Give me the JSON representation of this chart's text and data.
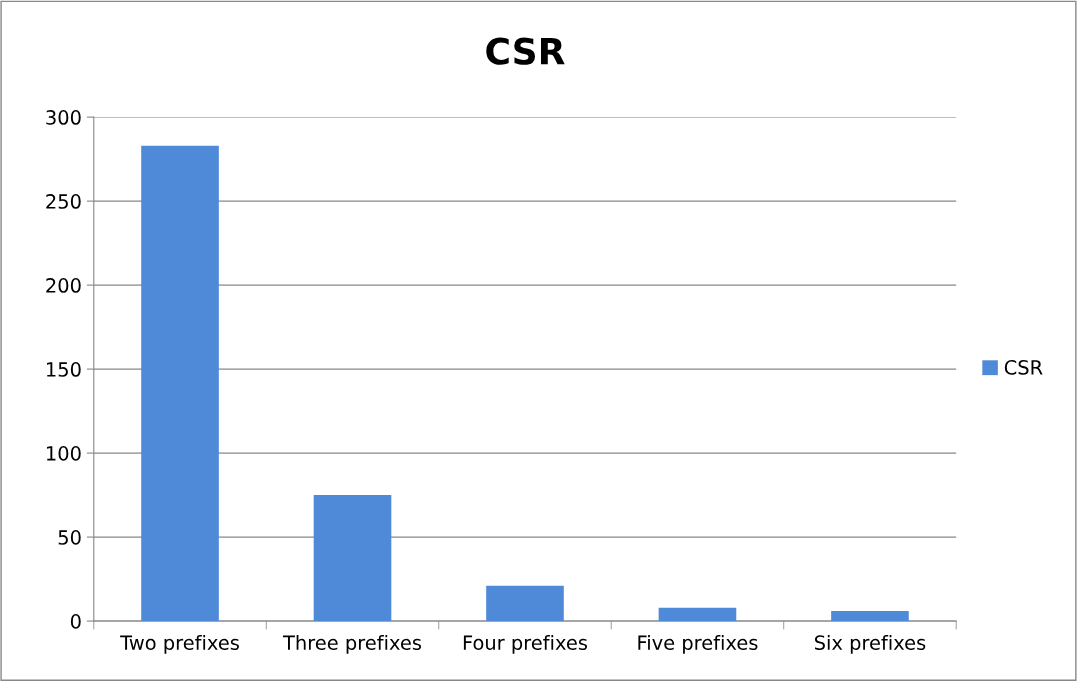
{
  "chart_data": {
    "type": "bar",
    "title": "CSR",
    "categories": [
      "Two prefixes",
      "Three prefixes",
      "Four prefixes",
      "Five prefixes",
      "Six prefixes"
    ],
    "series": [
      {
        "name": "CSR",
        "color": "#4f8ad9",
        "values": [
          283,
          75,
          21,
          8,
          6
        ]
      }
    ],
    "ylim": [
      0,
      300
    ],
    "yticks": [
      0,
      50,
      100,
      150,
      200,
      250,
      300
    ],
    "grid": "y",
    "legend": "right"
  }
}
